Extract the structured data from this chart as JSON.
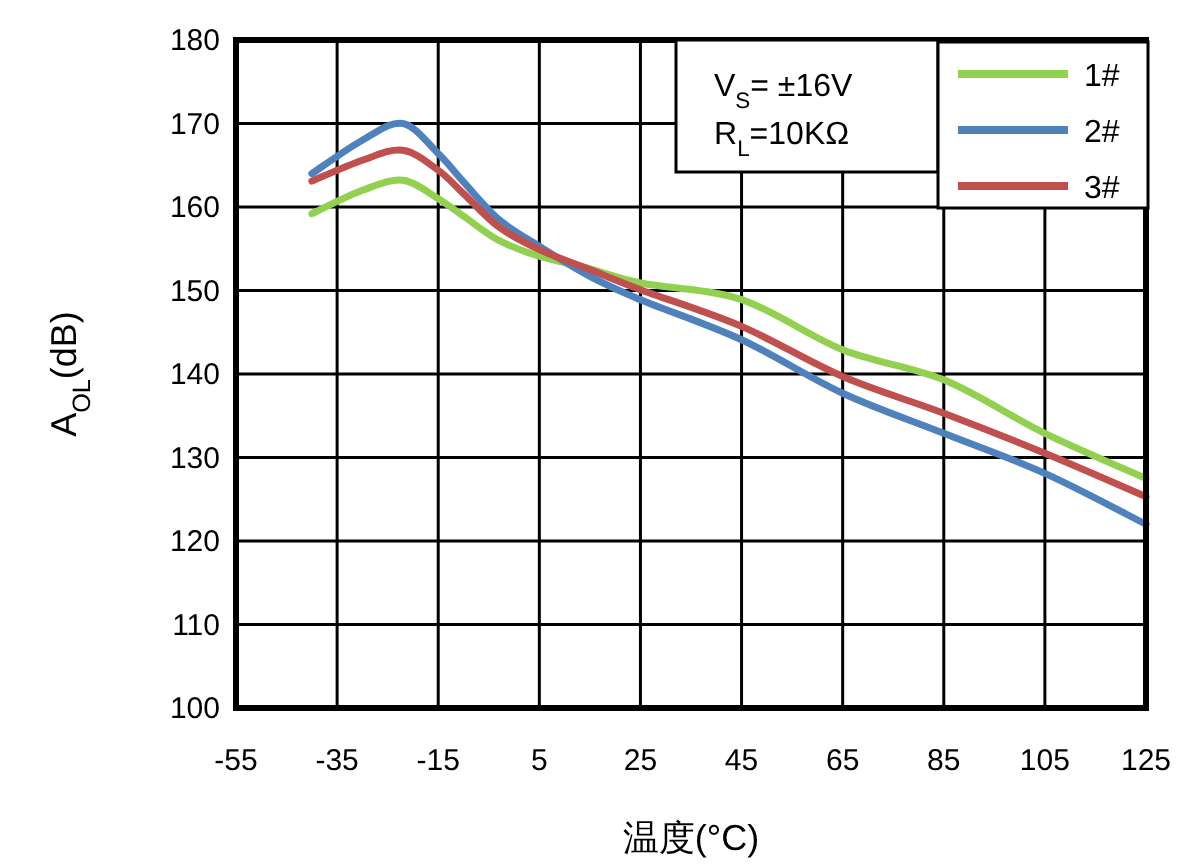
{
  "chart_data": {
    "type": "line",
    "xlabel": "温度(°C)",
    "ylabel": "A$_{OL}$(dB)",
    "annotations": [
      "V$_{S}$= ±16V",
      "R$_{L}$=10KΩ"
    ],
    "x": [
      -40,
      -30,
      -22,
      -15,
      -10,
      -3,
      5,
      15,
      25,
      45,
      65,
      85,
      105,
      125
    ],
    "series": [
      {
        "name": "1#",
        "color": "#92d050",
        "values": [
          159.2,
          162,
          163.2,
          161,
          158.9,
          156,
          154.1,
          152.6,
          150.9,
          148.9,
          142.9,
          139.3,
          132.9,
          127.5
        ]
      },
      {
        "name": "2#",
        "color": "#4f81bd",
        "values": [
          164,
          168,
          170,
          166.4,
          163,
          158.5,
          155.3,
          151.7,
          148.9,
          144.1,
          137.7,
          132.9,
          128.1,
          122
        ]
      },
      {
        "name": "3#",
        "color": "#c0504d",
        "values": [
          163.1,
          165.6,
          166.8,
          164.4,
          161.6,
          157.6,
          154.9,
          152.5,
          150.1,
          145.7,
          139.7,
          135.3,
          130.5,
          125.3
        ]
      }
    ],
    "xlim": [
      -55,
      125
    ],
    "ylim": [
      100,
      180
    ],
    "xticks": [
      -55,
      -35,
      -15,
      5,
      25,
      45,
      65,
      85,
      105,
      125
    ],
    "yticks": [
      100,
      110,
      120,
      130,
      140,
      150,
      160,
      170,
      180
    ],
    "grid": true,
    "legend": "top right"
  }
}
